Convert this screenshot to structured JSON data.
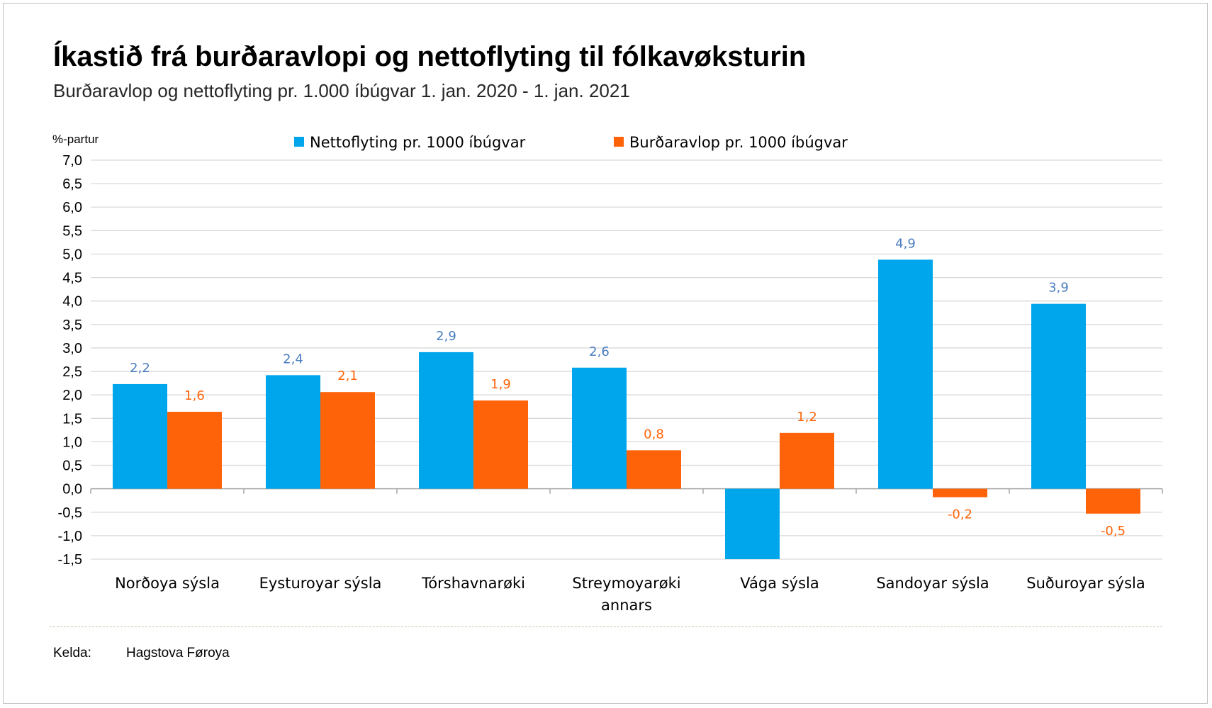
{
  "title": "Íkastið frá burðaravlopi og nettoflyting til fólkavøksturin",
  "subtitle": "Burðaravlop og nettoflyting pr. 1.000 íbúgvar 1. jan. 2020 - 1. jan. 2021",
  "source_label": "Kelda:",
  "source_value": "Hagstova Føroya",
  "chart_data": {
    "type": "bar",
    "unit_label": "%-partur",
    "categories": [
      [
        "Norðoya sýsla"
      ],
      [
        "Eysturoyar sýsla"
      ],
      [
        "Tórshavnarøki"
      ],
      [
        "Streymoyarøki",
        "annars"
      ],
      [
        "Vága sýsla"
      ],
      [
        "Sandoyar sýsla"
      ],
      [
        "Suðuroyar sýsla"
      ]
    ],
    "series": [
      {
        "name": "Nettoflyting pr. 1000 íbúgvar",
        "color": "#00a6eb",
        "label_color": "#4a7ebf",
        "values": [
          2.23,
          2.42,
          2.91,
          2.58,
          -1.5,
          4.88,
          3.94
        ],
        "data_labels": [
          "2,2",
          "2,4",
          "2,9",
          "2,6",
          "",
          "4,9",
          "3,9"
        ]
      },
      {
        "name": "Burðaravlop pr. 1000 íbúgvar",
        "color": "#ff6309",
        "label_color": "#ff6309",
        "values": [
          1.64,
          2.06,
          1.88,
          0.82,
          1.19,
          -0.18,
          -0.53
        ],
        "data_labels": [
          "1,6",
          "2,1",
          "1,9",
          "0,8",
          "1,2",
          "-0,2",
          "-0,5"
        ]
      }
    ],
    "ylim": [
      -1.5,
      7.0
    ],
    "ytick_step": 0.5,
    "ytick_labels": [
      "7,0",
      "6,5",
      "6,0",
      "5,5",
      "5,0",
      "4,5",
      "4,0",
      "3,5",
      "3,0",
      "2,5",
      "2,0",
      "1,5",
      "1,0",
      "0,5",
      "0,0",
      "-0,5",
      "-1,0",
      "-1,5"
    ],
    "grid": true,
    "legend_position": "top-center"
  }
}
